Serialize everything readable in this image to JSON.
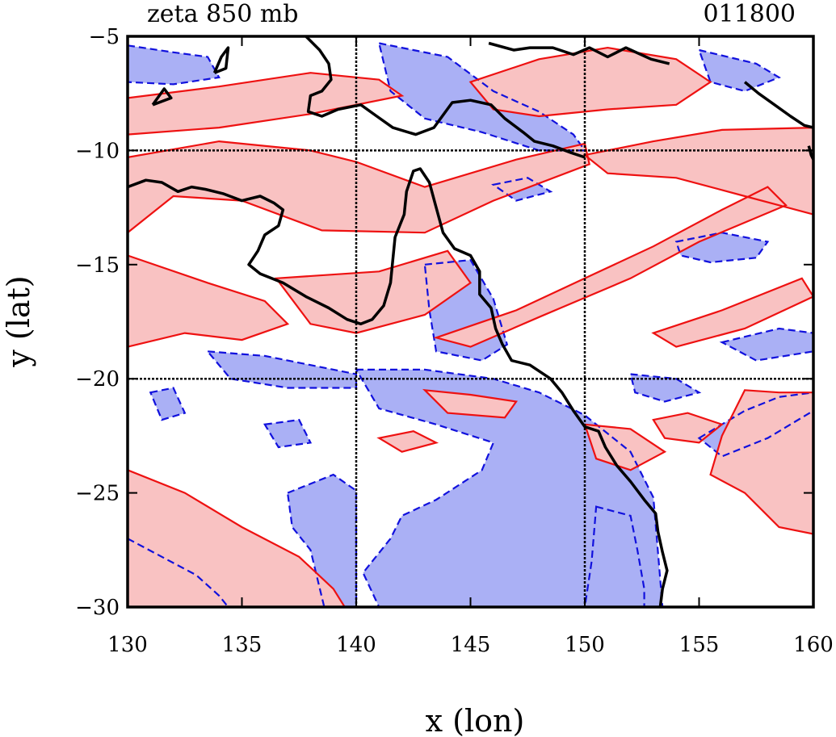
{
  "chart_data": {
    "type": "contour",
    "title": "zeta 850 mb",
    "subtitle": "011800",
    "xlabel": "x (lon)",
    "ylabel": "y (lat)",
    "xlim": [
      130,
      160
    ],
    "ylim": [
      -30,
      -5
    ],
    "xticks": [
      130,
      135,
      140,
      145,
      150,
      155,
      160
    ],
    "yticks": [
      -5,
      -10,
      -15,
      -20,
      -25,
      -30
    ],
    "xtick_labels": [
      "130",
      "135",
      "140",
      "145",
      "150",
      "155",
      "160"
    ],
    "ytick_labels": [
      "−5",
      "−10",
      "−15",
      "−20",
      "−25",
      "−30"
    ],
    "grid": {
      "x": [
        140,
        150
      ],
      "y": [
        -10,
        -20
      ]
    },
    "colors": {
      "positive_fill": "#f9c2c2",
      "positive_line": "#ee1111",
      "negative_fill": "#aab0f5",
      "negative_line": "#1111dd",
      "coast": "#000000"
    },
    "coastlines": [
      [
        [
          130.0,
          -11.6
        ],
        [
          130.8,
          -11.3
        ],
        [
          131.5,
          -11.4
        ],
        [
          132.2,
          -11.8
        ],
        [
          132.8,
          -11.6
        ],
        [
          133.4,
          -11.7
        ],
        [
          134.2,
          -11.9
        ],
        [
          135.0,
          -12.2
        ],
        [
          135.8,
          -12.0
        ],
        [
          136.4,
          -12.3
        ],
        [
          136.8,
          -12.6
        ],
        [
          136.6,
          -13.3
        ],
        [
          136.0,
          -13.7
        ],
        [
          135.7,
          -14.4
        ],
        [
          135.3,
          -15.0
        ],
        [
          135.8,
          -15.4
        ],
        [
          136.8,
          -15.8
        ],
        [
          137.8,
          -16.4
        ],
        [
          138.8,
          -16.9
        ],
        [
          139.6,
          -17.4
        ],
        [
          140.2,
          -17.6
        ],
        [
          140.7,
          -17.4
        ],
        [
          141.2,
          -16.8
        ],
        [
          141.5,
          -15.8
        ],
        [
          141.6,
          -14.8
        ],
        [
          141.7,
          -13.8
        ],
        [
          142.1,
          -12.8
        ],
        [
          142.2,
          -11.8
        ],
        [
          142.5,
          -10.9
        ],
        [
          142.8,
          -10.8
        ],
        [
          143.2,
          -11.4
        ],
        [
          143.5,
          -12.5
        ],
        [
          143.8,
          -13.6
        ],
        [
          144.3,
          -14.3
        ],
        [
          145.0,
          -14.6
        ],
        [
          145.4,
          -15.3
        ],
        [
          145.4,
          -16.3
        ],
        [
          145.9,
          -16.9
        ],
        [
          146.1,
          -17.8
        ],
        [
          146.4,
          -18.5
        ],
        [
          146.8,
          -19.2
        ],
        [
          147.6,
          -19.4
        ],
        [
          148.5,
          -20.0
        ],
        [
          149.0,
          -20.6
        ],
        [
          149.5,
          -21.4
        ],
        [
          150.0,
          -22.1
        ],
        [
          150.6,
          -22.3
        ],
        [
          150.9,
          -23.0
        ],
        [
          151.4,
          -23.8
        ],
        [
          152.0,
          -24.5
        ],
        [
          152.6,
          -25.3
        ],
        [
          153.1,
          -25.9
        ],
        [
          153.2,
          -26.7
        ],
        [
          153.4,
          -27.6
        ],
        [
          153.6,
          -28.4
        ],
        [
          153.4,
          -29.2
        ],
        [
          153.3,
          -30.0
        ]
      ],
      [
        [
          137.8,
          -5.0
        ],
        [
          138.4,
          -5.6
        ],
        [
          138.8,
          -6.2
        ],
        [
          138.9,
          -6.9
        ],
        [
          138.5,
          -7.4
        ],
        [
          138.0,
          -7.6
        ],
        [
          137.9,
          -8.3
        ],
        [
          138.5,
          -8.5
        ],
        [
          139.2,
          -8.2
        ],
        [
          140.2,
          -8.0
        ],
        [
          140.9,
          -8.5
        ],
        [
          141.6,
          -9.0
        ],
        [
          142.6,
          -9.3
        ],
        [
          143.4,
          -9.0
        ],
        [
          144.2,
          -7.9
        ],
        [
          145.0,
          -7.8
        ],
        [
          145.9,
          -8.0
        ],
        [
          146.5,
          -8.6
        ],
        [
          147.3,
          -9.2
        ],
        [
          147.8,
          -9.6
        ],
        [
          148.6,
          -9.8
        ],
        [
          149.4,
          -10.1
        ],
        [
          150.0,
          -10.3
        ]
      ],
      [
        [
          133.8,
          -6.6
        ],
        [
          134.1,
          -5.9
        ],
        [
          134.4,
          -5.5
        ],
        [
          134.3,
          -6.4
        ],
        [
          133.8,
          -6.6
        ]
      ],
      [
        [
          131.1,
          -8.0
        ],
        [
          131.6,
          -7.3
        ],
        [
          131.9,
          -7.7
        ],
        [
          131.1,
          -8.0
        ]
      ],
      [
        [
          145.8,
          -5.3
        ],
        [
          146.9,
          -5.6
        ],
        [
          147.6,
          -5.5
        ],
        [
          148.6,
          -5.5
        ],
        [
          149.5,
          -5.8
        ],
        [
          150.2,
          -5.5
        ],
        [
          151.0,
          -5.9
        ],
        [
          151.8,
          -5.5
        ],
        [
          152.9,
          -6.0
        ],
        [
          153.7,
          -6.2
        ]
      ],
      [
        [
          157.0,
          -7.0
        ],
        [
          157.6,
          -7.5
        ],
        [
          158.3,
          -8.0
        ],
        [
          159.0,
          -8.5
        ],
        [
          159.6,
          -8.9
        ],
        [
          160.0,
          -9.0
        ]
      ],
      [
        [
          159.8,
          -9.8
        ],
        [
          159.9,
          -10.2
        ],
        [
          160.0,
          -10.4
        ]
      ]
    ],
    "positive_regions": [
      [
        [
          130.0,
          -10.3
        ],
        [
          134.0,
          -9.6
        ],
        [
          138.0,
          -10.0
        ],
        [
          140.0,
          -10.5
        ],
        [
          143.0,
          -11.6
        ],
        [
          147.0,
          -10.4
        ],
        [
          150.0,
          -9.7
        ],
        [
          150.2,
          -10.6
        ],
        [
          146.0,
          -12.2
        ],
        [
          143.0,
          -13.6
        ],
        [
          138.5,
          -13.5
        ],
        [
          135.0,
          -12.2
        ],
        [
          132.0,
          -12.0
        ],
        [
          130.0,
          -13.6
        ]
      ],
      [
        [
          130.0,
          -7.7
        ],
        [
          134.0,
          -7.2
        ],
        [
          138.0,
          -6.6
        ],
        [
          141.0,
          -6.9
        ],
        [
          142.0,
          -7.6
        ],
        [
          138.0,
          -8.4
        ],
        [
          134.0,
          -9.0
        ],
        [
          130.0,
          -9.3
        ]
      ],
      [
        [
          130.0,
          -14.6
        ],
        [
          133.5,
          -15.8
        ],
        [
          136.0,
          -16.6
        ],
        [
          137.0,
          -17.6
        ],
        [
          135.0,
          -18.3
        ],
        [
          132.5,
          -18.0
        ],
        [
          130.0,
          -18.6
        ]
      ],
      [
        [
          136.5,
          -15.6
        ],
        [
          141.0,
          -15.3
        ],
        [
          144.0,
          -14.4
        ],
        [
          145.0,
          -15.8
        ],
        [
          143.0,
          -17.2
        ],
        [
          140.0,
          -18.0
        ],
        [
          138.0,
          -17.6
        ]
      ],
      [
        [
          143.5,
          -18.2
        ],
        [
          147.0,
          -17.0
        ],
        [
          150.0,
          -15.6
        ],
        [
          153.0,
          -14.2
        ],
        [
          156.0,
          -12.6
        ],
        [
          158.0,
          -11.6
        ],
        [
          158.8,
          -12.4
        ],
        [
          155.0,
          -14.0
        ],
        [
          152.0,
          -15.6
        ],
        [
          148.0,
          -17.3
        ],
        [
          145.0,
          -18.6
        ]
      ],
      [
        [
          153.0,
          -18.0
        ],
        [
          156.0,
          -17.0
        ],
        [
          159.5,
          -15.6
        ],
        [
          160.0,
          -16.4
        ],
        [
          157.0,
          -17.8
        ],
        [
          154.0,
          -18.6
        ]
      ],
      [
        [
          145.0,
          -7.0
        ],
        [
          148.0,
          -6.0
        ],
        [
          151.0,
          -5.5
        ],
        [
          154.0,
          -6.0
        ],
        [
          155.5,
          -7.0
        ],
        [
          154.0,
          -8.0
        ],
        [
          151.0,
          -8.2
        ],
        [
          148.0,
          -8.5
        ],
        [
          146.0,
          -8.2
        ]
      ],
      [
        [
          150.0,
          -10.2
        ],
        [
          153.0,
          -9.6
        ],
        [
          156.0,
          -9.1
        ],
        [
          160.0,
          -9.0
        ],
        [
          160.0,
          -12.8
        ],
        [
          157.0,
          -12.0
        ],
        [
          154.0,
          -11.2
        ],
        [
          151.0,
          -11.0
        ]
      ],
      [
        [
          130.0,
          -24.0
        ],
        [
          132.5,
          -25.0
        ],
        [
          135.0,
          -26.5
        ],
        [
          137.5,
          -27.8
        ],
        [
          139.0,
          -29.2
        ],
        [
          139.5,
          -30.0
        ],
        [
          130.0,
          -30.0
        ]
      ],
      [
        [
          157.0,
          -20.5
        ],
        [
          158.5,
          -20.6
        ],
        [
          160.0,
          -20.6
        ],
        [
          160.0,
          -26.8
        ],
        [
          158.5,
          -26.5
        ],
        [
          157.0,
          -25.0
        ],
        [
          155.5,
          -24.2
        ],
        [
          156.0,
          -22.5
        ]
      ],
      [
        [
          150.0,
          -22.0
        ],
        [
          152.0,
          -22.2
        ],
        [
          153.5,
          -23.2
        ],
        [
          152.0,
          -24.0
        ],
        [
          150.5,
          -23.5
        ]
      ],
      [
        [
          143.0,
          -20.5
        ],
        [
          145.0,
          -20.7
        ],
        [
          147.0,
          -21.0
        ],
        [
          146.5,
          -21.7
        ],
        [
          144.0,
          -21.5
        ]
      ],
      [
        [
          153.0,
          -21.8
        ],
        [
          154.5,
          -21.5
        ],
        [
          156.0,
          -22.0
        ],
        [
          155.0,
          -22.8
        ],
        [
          153.5,
          -22.6
        ]
      ],
      [
        [
          141.0,
          -22.6
        ],
        [
          142.5,
          -22.3
        ],
        [
          143.5,
          -22.8
        ],
        [
          142.0,
          -23.2
        ]
      ]
    ],
    "negative_regions": [
      [
        [
          130.0,
          -5.4
        ],
        [
          132.0,
          -5.7
        ],
        [
          133.5,
          -5.9
        ],
        [
          134.0,
          -6.8
        ],
        [
          132.0,
          -7.1
        ],
        [
          130.0,
          -7.0
        ]
      ],
      [
        [
          141.0,
          -5.3
        ],
        [
          144.0,
          -5.9
        ],
        [
          146.0,
          -7.4
        ],
        [
          148.0,
          -8.3
        ],
        [
          149.5,
          -9.3
        ],
        [
          150.0,
          -10.0
        ],
        [
          148.0,
          -10.0
        ],
        [
          145.5,
          -9.2
        ],
        [
          143.0,
          -8.6
        ],
        [
          141.5,
          -7.4
        ]
      ],
      [
        [
          155.0,
          -5.6
        ],
        [
          157.5,
          -6.2
        ],
        [
          158.5,
          -6.8
        ],
        [
          157.0,
          -7.4
        ],
        [
          155.5,
          -7.0
        ]
      ],
      [
        [
          140.0,
          -19.6
        ],
        [
          143.0,
          -19.6
        ],
        [
          146.0,
          -20.0
        ],
        [
          148.0,
          -20.6
        ],
        [
          150.0,
          -21.6
        ],
        [
          152.0,
          -23.2
        ],
        [
          153.0,
          -25.2
        ],
        [
          153.2,
          -27.6
        ],
        [
          153.4,
          -30.0
        ],
        [
          141.0,
          -30.0
        ],
        [
          140.3,
          -28.5
        ],
        [
          141.5,
          -27.0
        ],
        [
          142.0,
          -26.0
        ],
        [
          143.5,
          -25.3
        ],
        [
          145.5,
          -24.0
        ],
        [
          146.0,
          -22.8
        ],
        [
          143.5,
          -22.0
        ],
        [
          141.0,
          -21.3
        ]
      ],
      [
        [
          137.0,
          -25.0
        ],
        [
          139.0,
          -24.2
        ],
        [
          140.0,
          -24.9
        ],
        [
          140.0,
          -30.0
        ],
        [
          138.6,
          -30.0
        ],
        [
          138.0,
          -27.5
        ],
        [
          137.2,
          -26.5
        ]
      ],
      [
        [
          143.0,
          -15.0
        ],
        [
          145.0,
          -14.8
        ],
        [
          146.0,
          -16.5
        ],
        [
          146.6,
          -18.5
        ],
        [
          145.5,
          -19.2
        ],
        [
          143.5,
          -18.8
        ],
        [
          143.2,
          -17.0
        ]
      ],
      [
        [
          130.0,
          -27.0
        ],
        [
          131.5,
          -27.8
        ],
        [
          133.0,
          -28.6
        ],
        [
          134.0,
          -29.5
        ],
        [
          134.4,
          -30.0
        ],
        [
          130.0,
          -30.0
        ]
      ],
      [
        [
          133.5,
          -18.8
        ],
        [
          136.0,
          -19.0
        ],
        [
          138.0,
          -19.4
        ],
        [
          140.0,
          -19.8
        ],
        [
          140.0,
          -20.4
        ],
        [
          137.0,
          -20.4
        ],
        [
          134.5,
          -20.0
        ]
      ],
      [
        [
          154.0,
          -14.0
        ],
        [
          156.0,
          -13.6
        ],
        [
          158.0,
          -14.0
        ],
        [
          157.5,
          -14.7
        ],
        [
          155.5,
          -14.9
        ],
        [
          154.2,
          -14.6
        ]
      ],
      [
        [
          156.0,
          -18.4
        ],
        [
          158.5,
          -17.8
        ],
        [
          160.0,
          -18.0
        ],
        [
          160.0,
          -18.8
        ],
        [
          157.5,
          -19.2
        ]
      ],
      [
        [
          152.0,
          -19.8
        ],
        [
          154.0,
          -20.0
        ],
        [
          155.0,
          -20.6
        ],
        [
          153.5,
          -21.0
        ],
        [
          152.2,
          -20.6
        ]
      ],
      [
        [
          155.0,
          -22.6
        ],
        [
          157.0,
          -21.4
        ],
        [
          158.5,
          -20.8
        ],
        [
          160.0,
          -20.6
        ],
        [
          160.0,
          -21.4
        ],
        [
          158.0,
          -22.6
        ],
        [
          156.0,
          -23.4
        ]
      ],
      [
        [
          150.5,
          -25.6
        ],
        [
          152.0,
          -26.0
        ],
        [
          152.3,
          -27.5
        ],
        [
          152.6,
          -29.2
        ],
        [
          152.6,
          -30.0
        ],
        [
          150.0,
          -30.0
        ],
        [
          150.3,
          -28.0
        ]
      ],
      [
        [
          131.0,
          -20.6
        ],
        [
          132.0,
          -20.4
        ],
        [
          132.5,
          -21.5
        ],
        [
          131.5,
          -21.8
        ]
      ],
      [
        [
          146.0,
          -11.5
        ],
        [
          147.5,
          -11.2
        ],
        [
          148.5,
          -11.8
        ],
        [
          147.0,
          -12.2
        ]
      ],
      [
        [
          136.0,
          -22.0
        ],
        [
          137.5,
          -21.8
        ],
        [
          138.0,
          -22.8
        ],
        [
          136.6,
          -23.0
        ]
      ]
    ]
  }
}
